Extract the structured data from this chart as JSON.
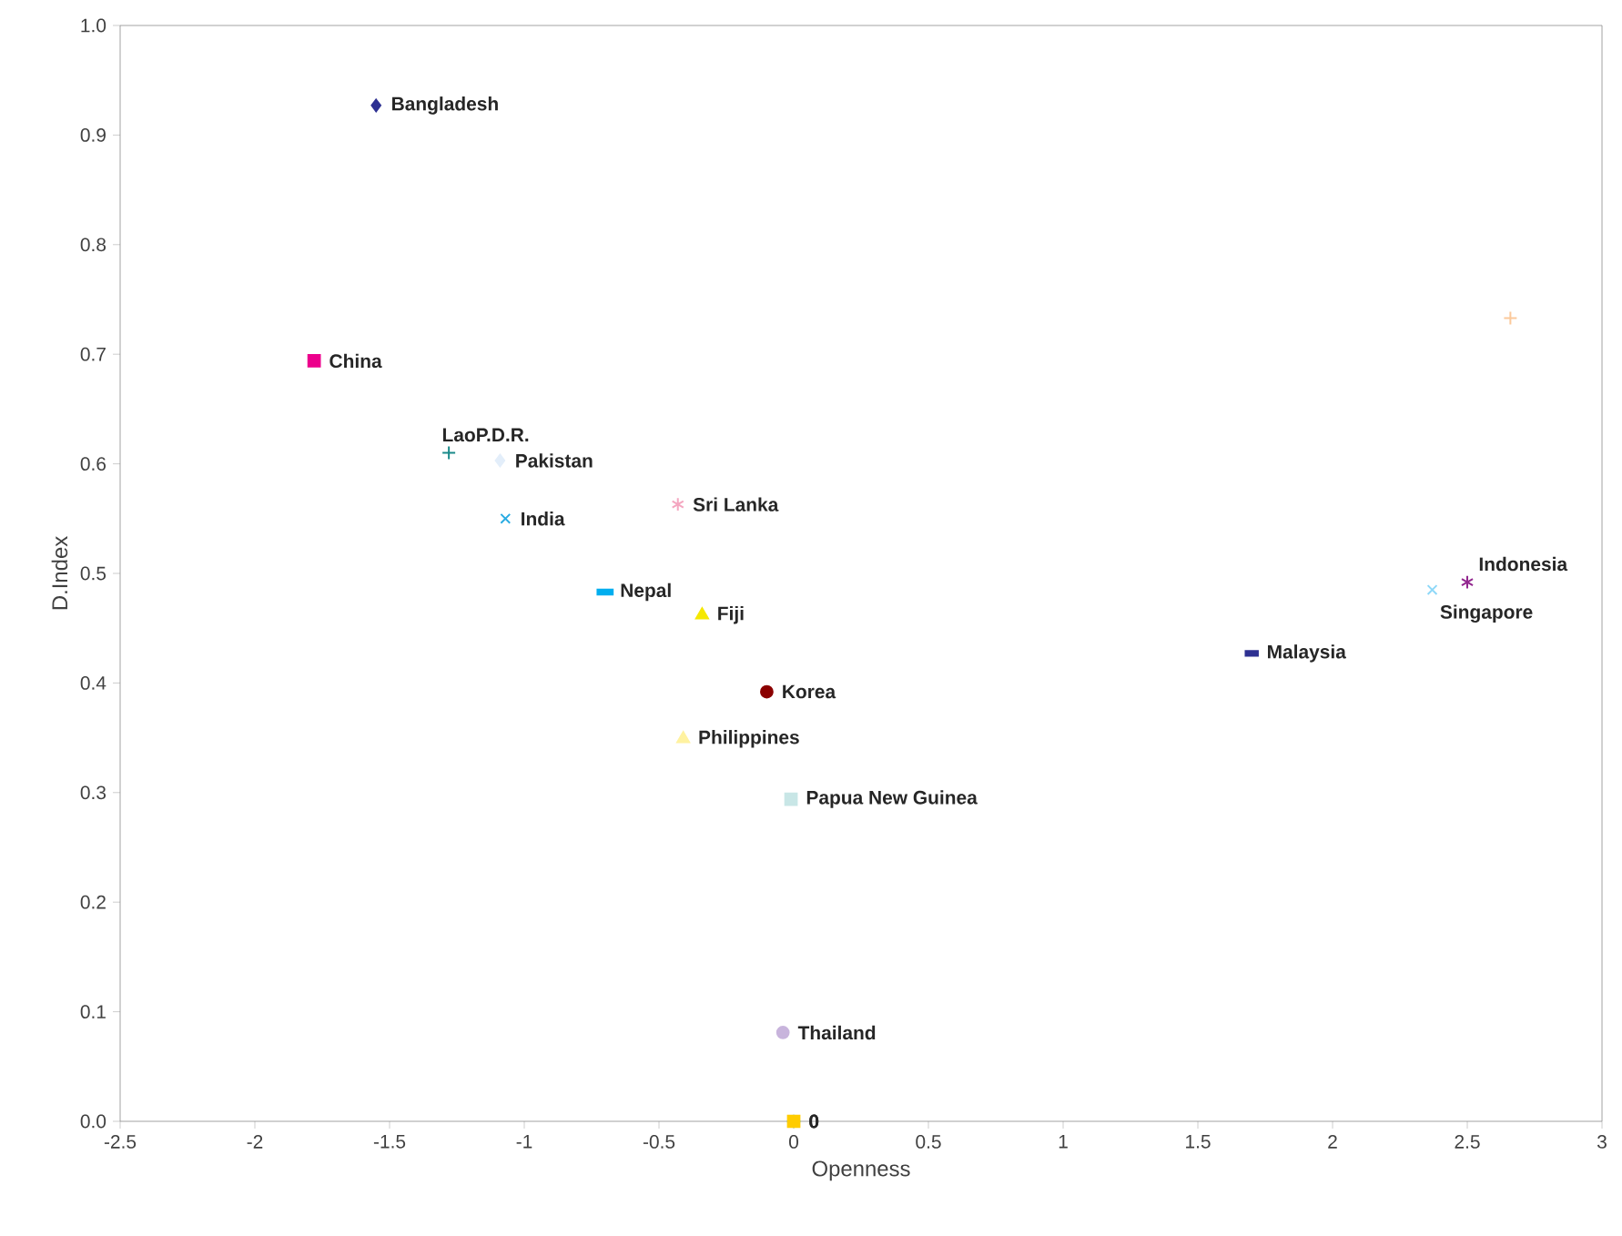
{
  "chart_data": {
    "type": "scatter",
    "xlabel": "Openness",
    "ylabel": "D.Index",
    "xlim": [
      -2.5,
      3
    ],
    "ylim": [
      0,
      1
    ],
    "xticks": [
      -2.5,
      -2,
      -1.5,
      -1,
      -0.5,
      0,
      0.5,
      1,
      1.5,
      2,
      2.5,
      3
    ],
    "yticks": [
      {
        "value": 0,
        "label": "0.0"
      },
      0.1,
      0.2,
      0.3,
      0.4,
      0.5,
      0.6,
      0.7,
      0.8,
      0.9,
      {
        "value": 1,
        "label": "1.0"
      }
    ],
    "series": [
      {
        "name": "Bangladesh",
        "color": "#2e3192",
        "marker": "diamond",
        "x": [
          -1.55
        ],
        "values": [
          0.927
        ]
      },
      {
        "name": "China",
        "color": "#ec008c",
        "marker": "square",
        "x": [
          -1.78
        ],
        "values": [
          0.694
        ]
      },
      {
        "name": "LaoP.D.R.",
        "color": "#1a8a8a",
        "marker": "plus",
        "x": [
          -1.28
        ],
        "values": [
          0.61
        ]
      },
      {
        "name": "Pakistan",
        "color": "#e3eefa",
        "marker": "diamond",
        "x": [
          -1.09
        ],
        "values": [
          0.603
        ]
      },
      {
        "name": "India",
        "color": "#29abe2",
        "marker": "cross",
        "x": [
          -1.07
        ],
        "values": [
          0.55
        ]
      },
      {
        "name": "Sri Lanka",
        "color": "#f4a6c0",
        "marker": "cross",
        "x": [
          -0.43
        ],
        "values": [
          0.563
        ]
      },
      {
        "name": "Nepal",
        "color": "#00aeef",
        "marker": "square",
        "x": [
          -0.7
        ],
        "values": [
          0.483
        ]
      },
      {
        "name": "Fiji",
        "color": "#f5e800",
        "marker": "triangle",
        "x": [
          -0.34
        ],
        "values": [
          0.462
        ]
      },
      {
        "name": "Korea",
        "color": "#8b0000",
        "marker": "circle",
        "x": [
          -0.1
        ],
        "values": [
          0.392
        ]
      },
      {
        "name": "Philippines",
        "color": "#fff2a0",
        "marker": "triangle",
        "x": [
          -0.41
        ],
        "values": [
          0.349
        ]
      },
      {
        "name": "Papua New Guinea",
        "color": "#c8e6e6",
        "marker": "square",
        "x": [
          -0.01
        ],
        "values": [
          0.294
        ]
      },
      {
        "name": "Thailand",
        "color": "#c8b4dc",
        "marker": "circle",
        "x": [
          -0.04
        ],
        "values": [
          0.081
        ]
      },
      {
        "name": "Malaysia",
        "color": "#2e3192",
        "marker": "square",
        "x": [
          1.7
        ],
        "values": [
          0.427
        ]
      },
      {
        "name": "Singapore",
        "color": "#8ed8f8",
        "marker": "cross",
        "x": [
          2.37
        ],
        "values": [
          0.485
        ]
      },
      {
        "name": "Indonesia",
        "color": "#92278f",
        "marker": "cross",
        "x": [
          2.5
        ],
        "values": [
          0.492
        ]
      },
      {
        "color": "#fbc99b",
        "marker": "plus",
        "x": [
          2.66
        ],
        "values": [
          0.733
        ]
      },
      {
        "name": "0",
        "color": "#29abe2",
        "marker": "circle",
        "x": [
          0
        ],
        "values": [
          0
        ]
      },
      {
        "name": "0",
        "color": "#ffcc00",
        "marker": "square",
        "x": [
          0
        ],
        "values": [
          0
        ]
      }
    ]
  }
}
